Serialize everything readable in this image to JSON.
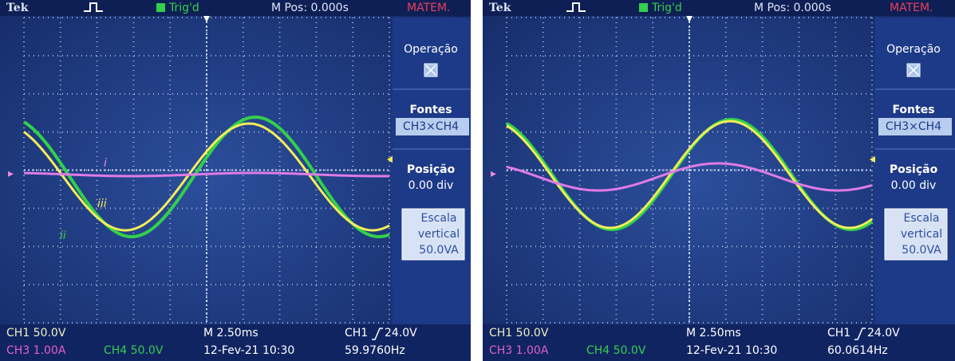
{
  "screens": [
    {
      "header": {
        "brand": "Tek",
        "trigger": "Trig'd",
        "mpos": "M Pos: 0.000s",
        "mode": "MATEM."
      },
      "menu": {
        "operation": "Operação",
        "sources_title": "Fontes",
        "sources": "CH3×CH4",
        "position_title": "Posição",
        "position": "0.00 div",
        "scale_1": "Escala",
        "scale_2": "vertical",
        "scale_3": "50.0VA"
      },
      "footer": {
        "ch1": "CH1 50.0V",
        "timebase": "M 2.50ms",
        "trig_ch": "CH1",
        "trig_level": "24.0V",
        "ch3": "CH3 1.00A",
        "ch4": "CH4 50.0V",
        "date": "12-Fev-21 10:30",
        "freq": "59.9760Hz"
      },
      "labels": {
        "i": "i",
        "ii": "ii",
        "iii": "iii"
      }
    },
    {
      "header": {
        "brand": "Tek",
        "trigger": "Trig'd",
        "mpos": "M Pos: 0.000s",
        "mode": "MATEM."
      },
      "menu": {
        "operation": "Operação",
        "sources_title": "Fontes",
        "sources": "CH3×CH4",
        "position_title": "Posição",
        "position": "0.00 div",
        "scale_1": "Escala",
        "scale_2": "vertical",
        "scale_3": "50.0VA"
      },
      "footer": {
        "ch1": "CH1 50.0V",
        "timebase": "M 2.50ms",
        "trig_ch": "CH1",
        "trig_level": "24.0V",
        "ch3": "CH3 1.00A",
        "ch4": "CH4 50.0V",
        "date": "12-Fev-21 10:30",
        "freq": "60.0614Hz"
      }
    }
  ]
}
